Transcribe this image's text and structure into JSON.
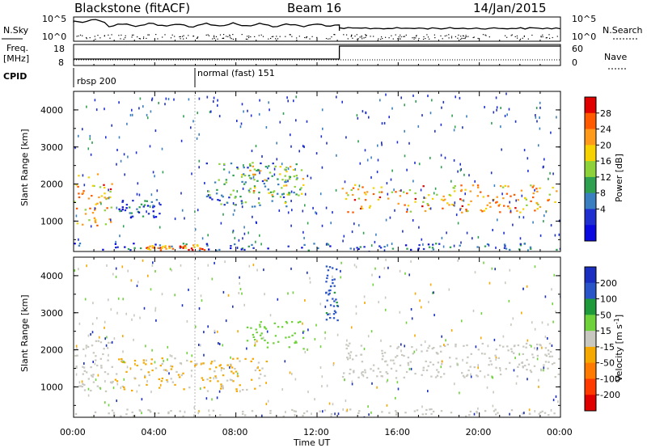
{
  "header": {
    "station": "Blackstone (fitACF)",
    "beam": "Beam 16",
    "date": "14/Jan/2015"
  },
  "top_panel": {
    "nsky_label": "N.Sky",
    "nsky_top_tick": "10^5",
    "nsky_bottom_tick": "10^0",
    "nsearch_label": "N.Search",
    "nsearch_top_tick": "10^5",
    "nsearch_bottom_tick": "10^0",
    "freq_label": "Freq.",
    "freq_unit": "[MHz]",
    "freq_ticks": [
      "18",
      "8"
    ],
    "nave_label": "Nave",
    "nave_ticks": [
      "60",
      "0"
    ],
    "cpid_label": "CPID",
    "cpid_segments": [
      {
        "label": "rbsp 200",
        "start_hour": 0.0
      },
      {
        "label": "normal (fast) 151",
        "start_hour": 6.0
      }
    ],
    "nave_step_hour": 13.1
  },
  "power_panel": {
    "ylabel": "Slant Range [km]",
    "yticks": [
      "4000",
      "3000",
      "2000",
      "1000"
    ],
    "colorbar_label": "Power [dB]",
    "colorbar_ticks": [
      "28",
      "24",
      "20",
      "16",
      "12",
      "8",
      "4"
    ],
    "colorbar_colors": [
      "#e00000",
      "#ff5a00",
      "#ff9a1a",
      "#f5d200",
      "#8ed23a",
      "#2ea050",
      "#3a7fc0",
      "#2030d0",
      "#0a0ae0"
    ]
  },
  "velocity_panel": {
    "ylabel": "Slant Range [km]",
    "yticks": [
      "4000",
      "3000",
      "2000",
      "1000"
    ],
    "colorbar_label": "Velocity [m s",
    "colorbar_label_sup": "-1",
    "colorbar_label_end": "]",
    "colorbar_ticks": [
      "200",
      "100",
      "50",
      "15",
      "-15",
      "-50",
      "-100",
      "-200"
    ],
    "colorbar_colors": [
      "#1a2fc0",
      "#2a55c8",
      "#1e9a3a",
      "#6fd23a",
      "#c8c8c0",
      "#f5a800",
      "#ff7a00",
      "#ff3a00",
      "#e00000"
    ]
  },
  "x_axis": {
    "label": "Time UT",
    "ticks": [
      "00:00",
      "04:00",
      "08:00",
      "12:00",
      "16:00",
      "20:00",
      "00:00"
    ]
  },
  "chart_data": [
    {
      "type": "heatmap",
      "title": "Blackstone (fitACF)  Beam 16  14/Jan/2015",
      "xlabel": "Time UT",
      "ylabel": "Slant Range [km]",
      "colorbar": "Power [dB]",
      "xlim_hours": [
        0,
        24
      ],
      "ylim_km": [
        180,
        4500
      ],
      "clim": [
        0,
        30
      ],
      "features": [
        {
          "name": "near-range echo band",
          "hours": [
            0,
            24
          ],
          "range_km": [
            230,
            420
          ],
          "power_db": 6
        },
        {
          "name": "near-range strong patch",
          "hours": [
            3.5,
            6.5
          ],
          "range_km": [
            240,
            380
          ],
          "power_db": 24
        },
        {
          "name": "early evening arc",
          "hours": [
            0,
            1.9
          ],
          "range_km": [
            850,
            2300
          ],
          "power_db": 22
        },
        {
          "name": "dusk patch",
          "hours": [
            2.2,
            4.3
          ],
          "range_km": [
            1100,
            1600
          ],
          "power_db": 5
        },
        {
          "name": "midnight structure",
          "hours": [
            6.5,
            11.2
          ],
          "range_km": [
            1400,
            2600
          ],
          "power_db": 10
        },
        {
          "name": "arc peak",
          "hours": [
            8.5,
            11.3
          ],
          "range_km": [
            1700,
            2500
          ],
          "power_db": 18
        },
        {
          "name": "post-13UT trough",
          "hours": [
            13.2,
            24
          ],
          "range_km": [
            1250,
            2000
          ],
          "power_db": 22
        }
      ]
    },
    {
      "type": "heatmap",
      "title": "Blackstone (fitACF)  Beam 16  14/Jan/2015",
      "xlabel": "Time UT",
      "ylabel": "Slant Range [km]",
      "colorbar": "Velocity [m s-1]",
      "xlim_hours": [
        0,
        24
      ],
      "ylim_km": [
        180,
        4500
      ],
      "clim": [
        -250,
        250
      ],
      "features": [
        {
          "name": "ground scatter near range",
          "hours": [
            0,
            24
          ],
          "range_km": [
            230,
            420
          ],
          "velocity": 0
        },
        {
          "name": "early ground scatter",
          "hours": [
            0,
            1.9
          ],
          "range_km": [
            900,
            2300
          ],
          "velocity": 0
        },
        {
          "name": "away flow patch",
          "hours": [
            2.0,
            9.5
          ],
          "range_km": [
            900,
            1800
          ],
          "velocity": -40
        },
        {
          "name": "toward flow arc",
          "hours": [
            8.5,
            11.3
          ],
          "range_km": [
            2000,
            2800
          ],
          "velocity": 60
        },
        {
          "name": "toward flow column",
          "hours": [
            12.4,
            13.0
          ],
          "range_km": [
            2800,
            4300
          ],
          "velocity": 180
        },
        {
          "name": "post-13UT ground scatter",
          "hours": [
            13.2,
            24
          ],
          "range_km": [
            1250,
            2200
          ],
          "velocity": 0
        }
      ]
    }
  ]
}
